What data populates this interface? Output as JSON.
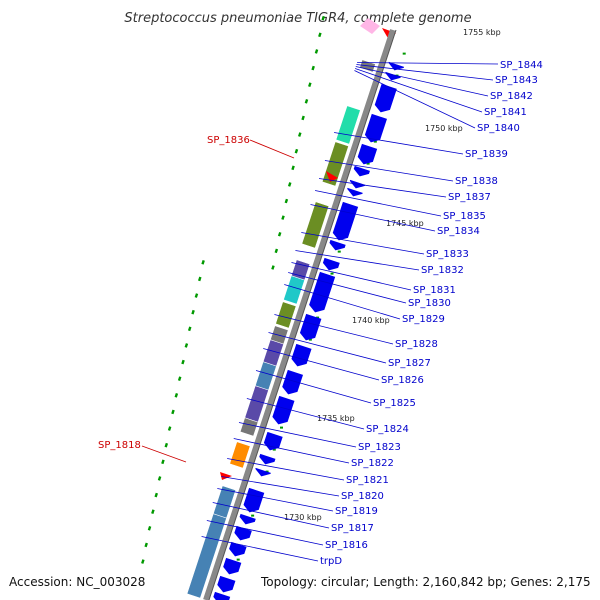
{
  "title": "Streptococcus pneumoniae TIGR4, complete genome",
  "accession": "Accession: NC_003028",
  "topology": "Topology: circular; Length: 2,160,842 bp; Genes: 2,175",
  "kbp_marks": [
    "1755 kbp",
    "1750 kbp",
    "1745 kbp",
    "1740 kbp",
    "1735 kbp",
    "1730 kbp"
  ],
  "colors": {
    "forward_gene": "#0000ee",
    "label_blue": "#0000cc",
    "label_red": "#cc0000",
    "backbone": "#888888",
    "gc_dots": "#008800"
  },
  "genes_right": [
    "SP_1844",
    "SP_1843",
    "SP_1842",
    "SP_1841",
    "SP_1840",
    "SP_1839",
    "SP_1838",
    "SP_1837",
    "SP_1835",
    "SP_1834",
    "SP_1833",
    "SP_1832",
    "SP_1831",
    "SP_1830",
    "SP_1829",
    "SP_1828",
    "SP_1827",
    "SP_1826",
    "SP_1825",
    "SP_1824",
    "SP_1823",
    "SP_1822",
    "SP_1821",
    "SP_1820",
    "SP_1819",
    "SP_1817",
    "SP_1816",
    "trpD"
  ],
  "genes_left": [
    "SP_1836",
    "SP_1818"
  ]
}
